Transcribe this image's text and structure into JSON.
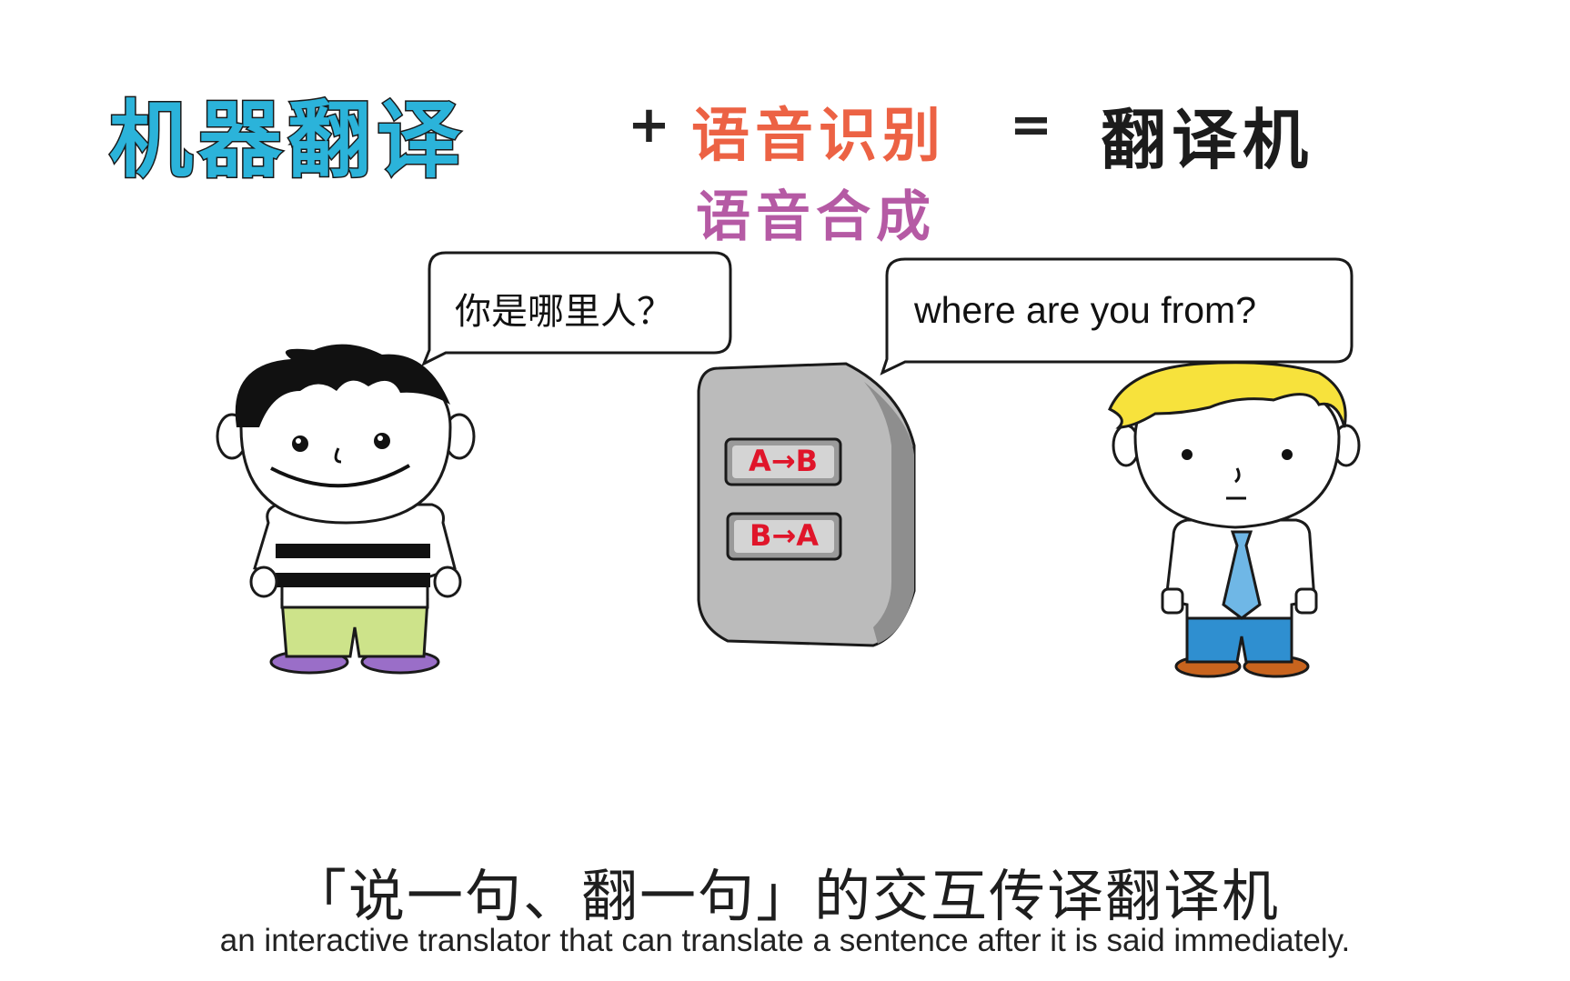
{
  "title": {
    "machine_translation": "机器翻译",
    "plus": "+",
    "speech_recognition": "语音识别",
    "speech_synthesis": "语音合成",
    "equals": "=",
    "result": "翻译机"
  },
  "bubbles": {
    "chinese_speaker": "你是哪里人？",
    "english_speaker": "where are you from?"
  },
  "device": {
    "button_ab": "A→B",
    "button_ba": "B→A"
  },
  "caption": {
    "chinese": "「说一句、翻一句」的交互传译翻译机",
    "english": "an interactive translator that can translate a sentence after it is said immediately."
  },
  "colors": {
    "machine_translation": "#2bb3da",
    "speech_recognition": "#ec6244",
    "speech_synthesis": "#b55aa4",
    "button_text": "#e0152a",
    "device": "#b8b8b8",
    "pants_left": "#cde38a",
    "shoes_left": "#9a6ec8",
    "hair_right": "#f7e23c",
    "tie": "#6fb7e6",
    "pants_right": "#2f8fd0",
    "shoes_right": "#c8641e"
  }
}
